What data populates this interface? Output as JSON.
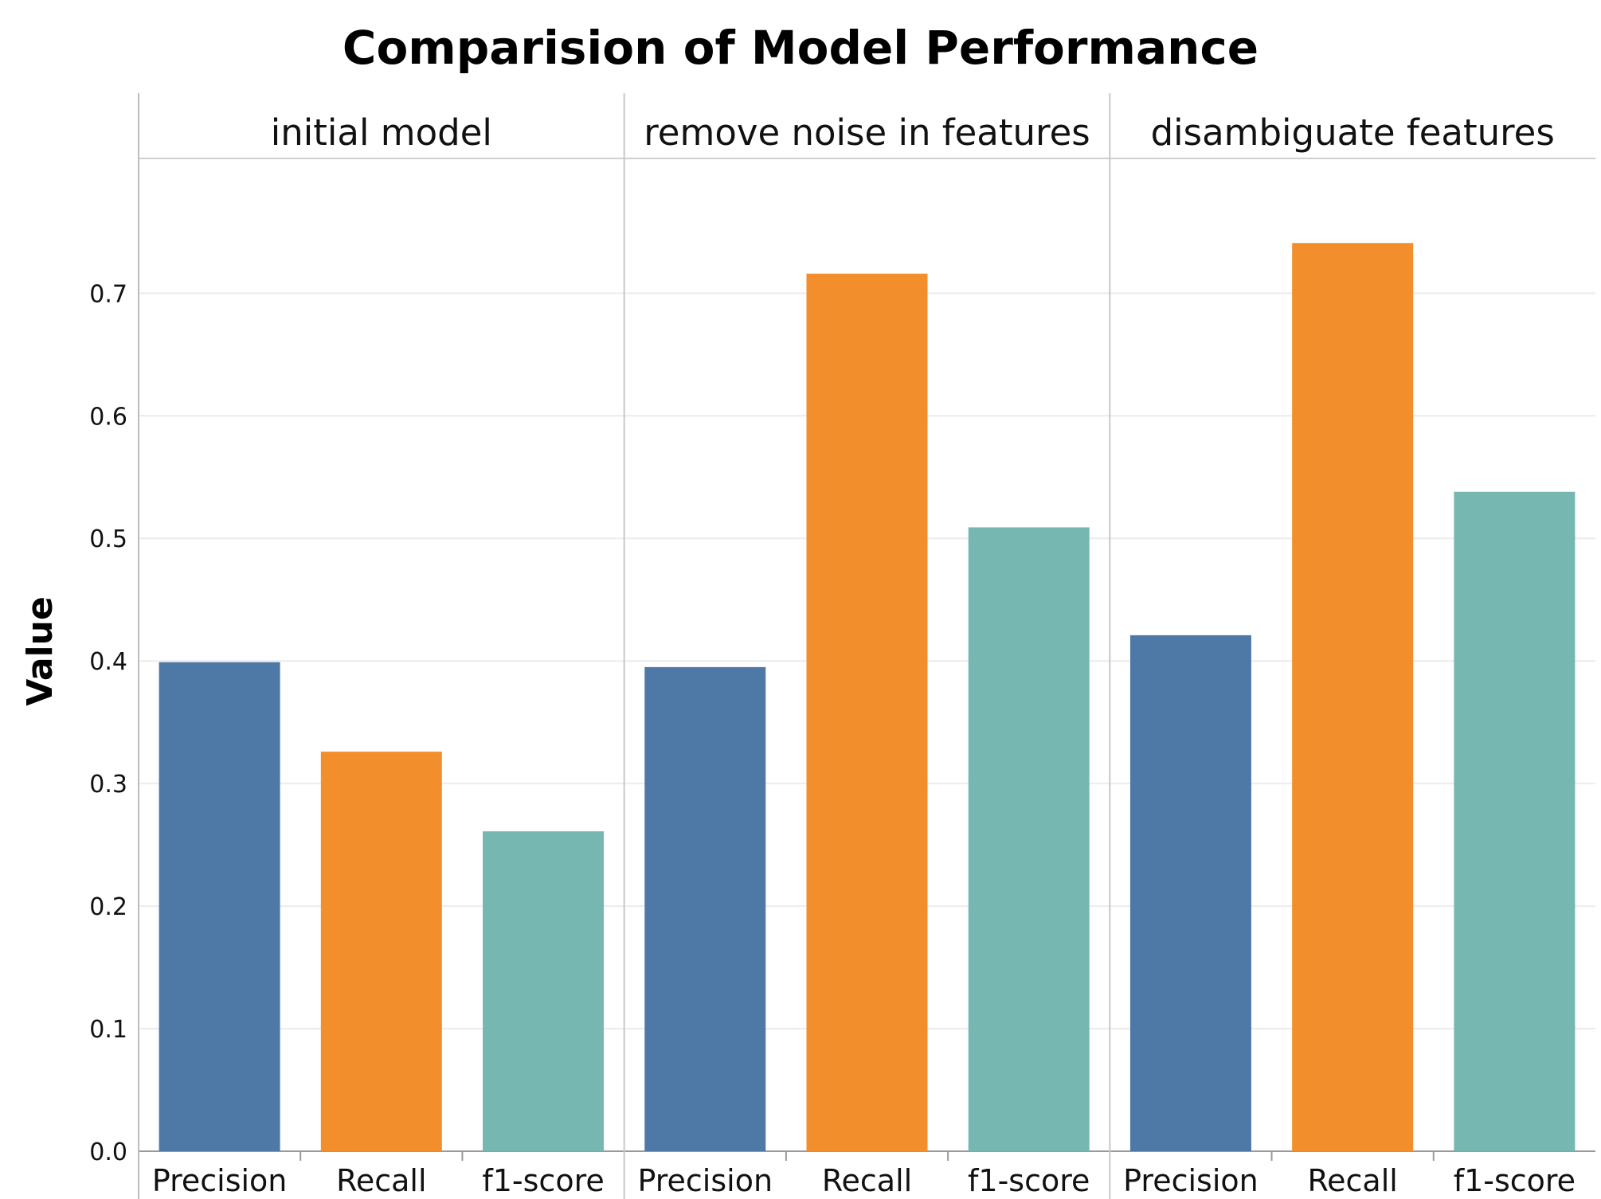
{
  "chart_data": {
    "type": "bar",
    "title": "Comparision of Model Performance",
    "ylabel": "Value",
    "xlabel": "",
    "ylim": [
      0,
      0.81
    ],
    "yticks": [
      "0.0",
      "0.1",
      "0.2",
      "0.3",
      "0.4",
      "0.5",
      "0.6",
      "0.7"
    ],
    "grid": "horizontal",
    "categories": [
      "Precision",
      "Recall",
      "f1-score"
    ],
    "colors": {
      "Precision": "#4e79a7",
      "Recall": "#f28e2b",
      "f1-score": "#76b7b2"
    },
    "panels": [
      {
        "name": "initial model",
        "values": [
          0.399,
          0.326,
          0.261
        ]
      },
      {
        "name": "remove noise in features",
        "values": [
          0.395,
          0.716,
          0.509
        ]
      },
      {
        "name": "disambiguate features",
        "values": [
          0.421,
          0.741,
          0.538
        ]
      }
    ]
  }
}
